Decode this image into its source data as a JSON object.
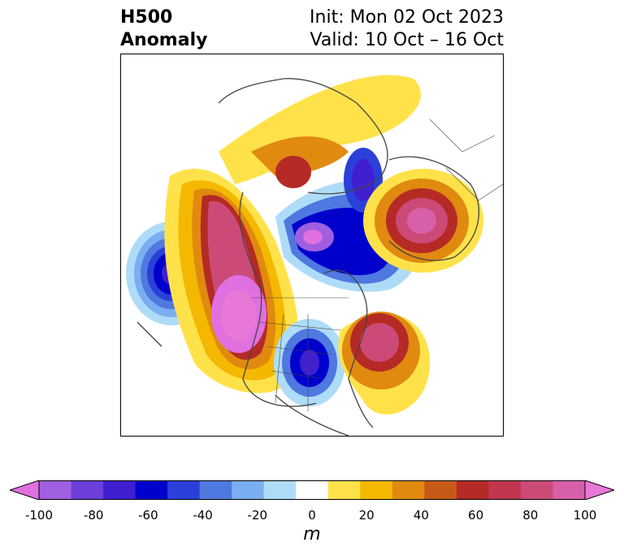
{
  "header": {
    "title_line1": "H500",
    "title_line2": "Anomaly",
    "init": "Init: Mon 02 Oct 2023",
    "valid": "Valid: 10 Oct – 16 Oct"
  },
  "colorbar": {
    "unit": "m",
    "ticks": [
      "-100",
      "-80",
      "-60",
      "-40",
      "-20",
      "0",
      "20",
      "40",
      "60",
      "80",
      "100"
    ],
    "colors": [
      "#e070e0",
      "#9f5fe0",
      "#6c3fd8",
      "#3f1fd0",
      "#0000cc",
      "#2a40d8",
      "#4f78e0",
      "#7aaef0",
      "#aedcf8",
      "#ffffff",
      "#ffe24a",
      "#f5b800",
      "#e08a10",
      "#c85a18",
      "#b52a25",
      "#c0374f",
      "#cc4a78",
      "#d860a8",
      "#e878d8"
    ]
  },
  "map": {
    "anomalies": [
      {
        "label": "pacific-low",
        "sign": "negative",
        "max_magnitude": "-60"
      },
      {
        "label": "western-ridge",
        "sign": "positive",
        "max_magnitude": "100"
      },
      {
        "label": "polar-low",
        "sign": "negative",
        "max_magnitude": "-100"
      },
      {
        "label": "eastern-trough",
        "sign": "negative",
        "max_magnitude": "-60"
      },
      {
        "label": "atlantic-ridge",
        "sign": "positive",
        "max_magnitude": "80"
      },
      {
        "label": "siberian-ridge",
        "sign": "positive",
        "max_magnitude": "80"
      }
    ]
  }
}
